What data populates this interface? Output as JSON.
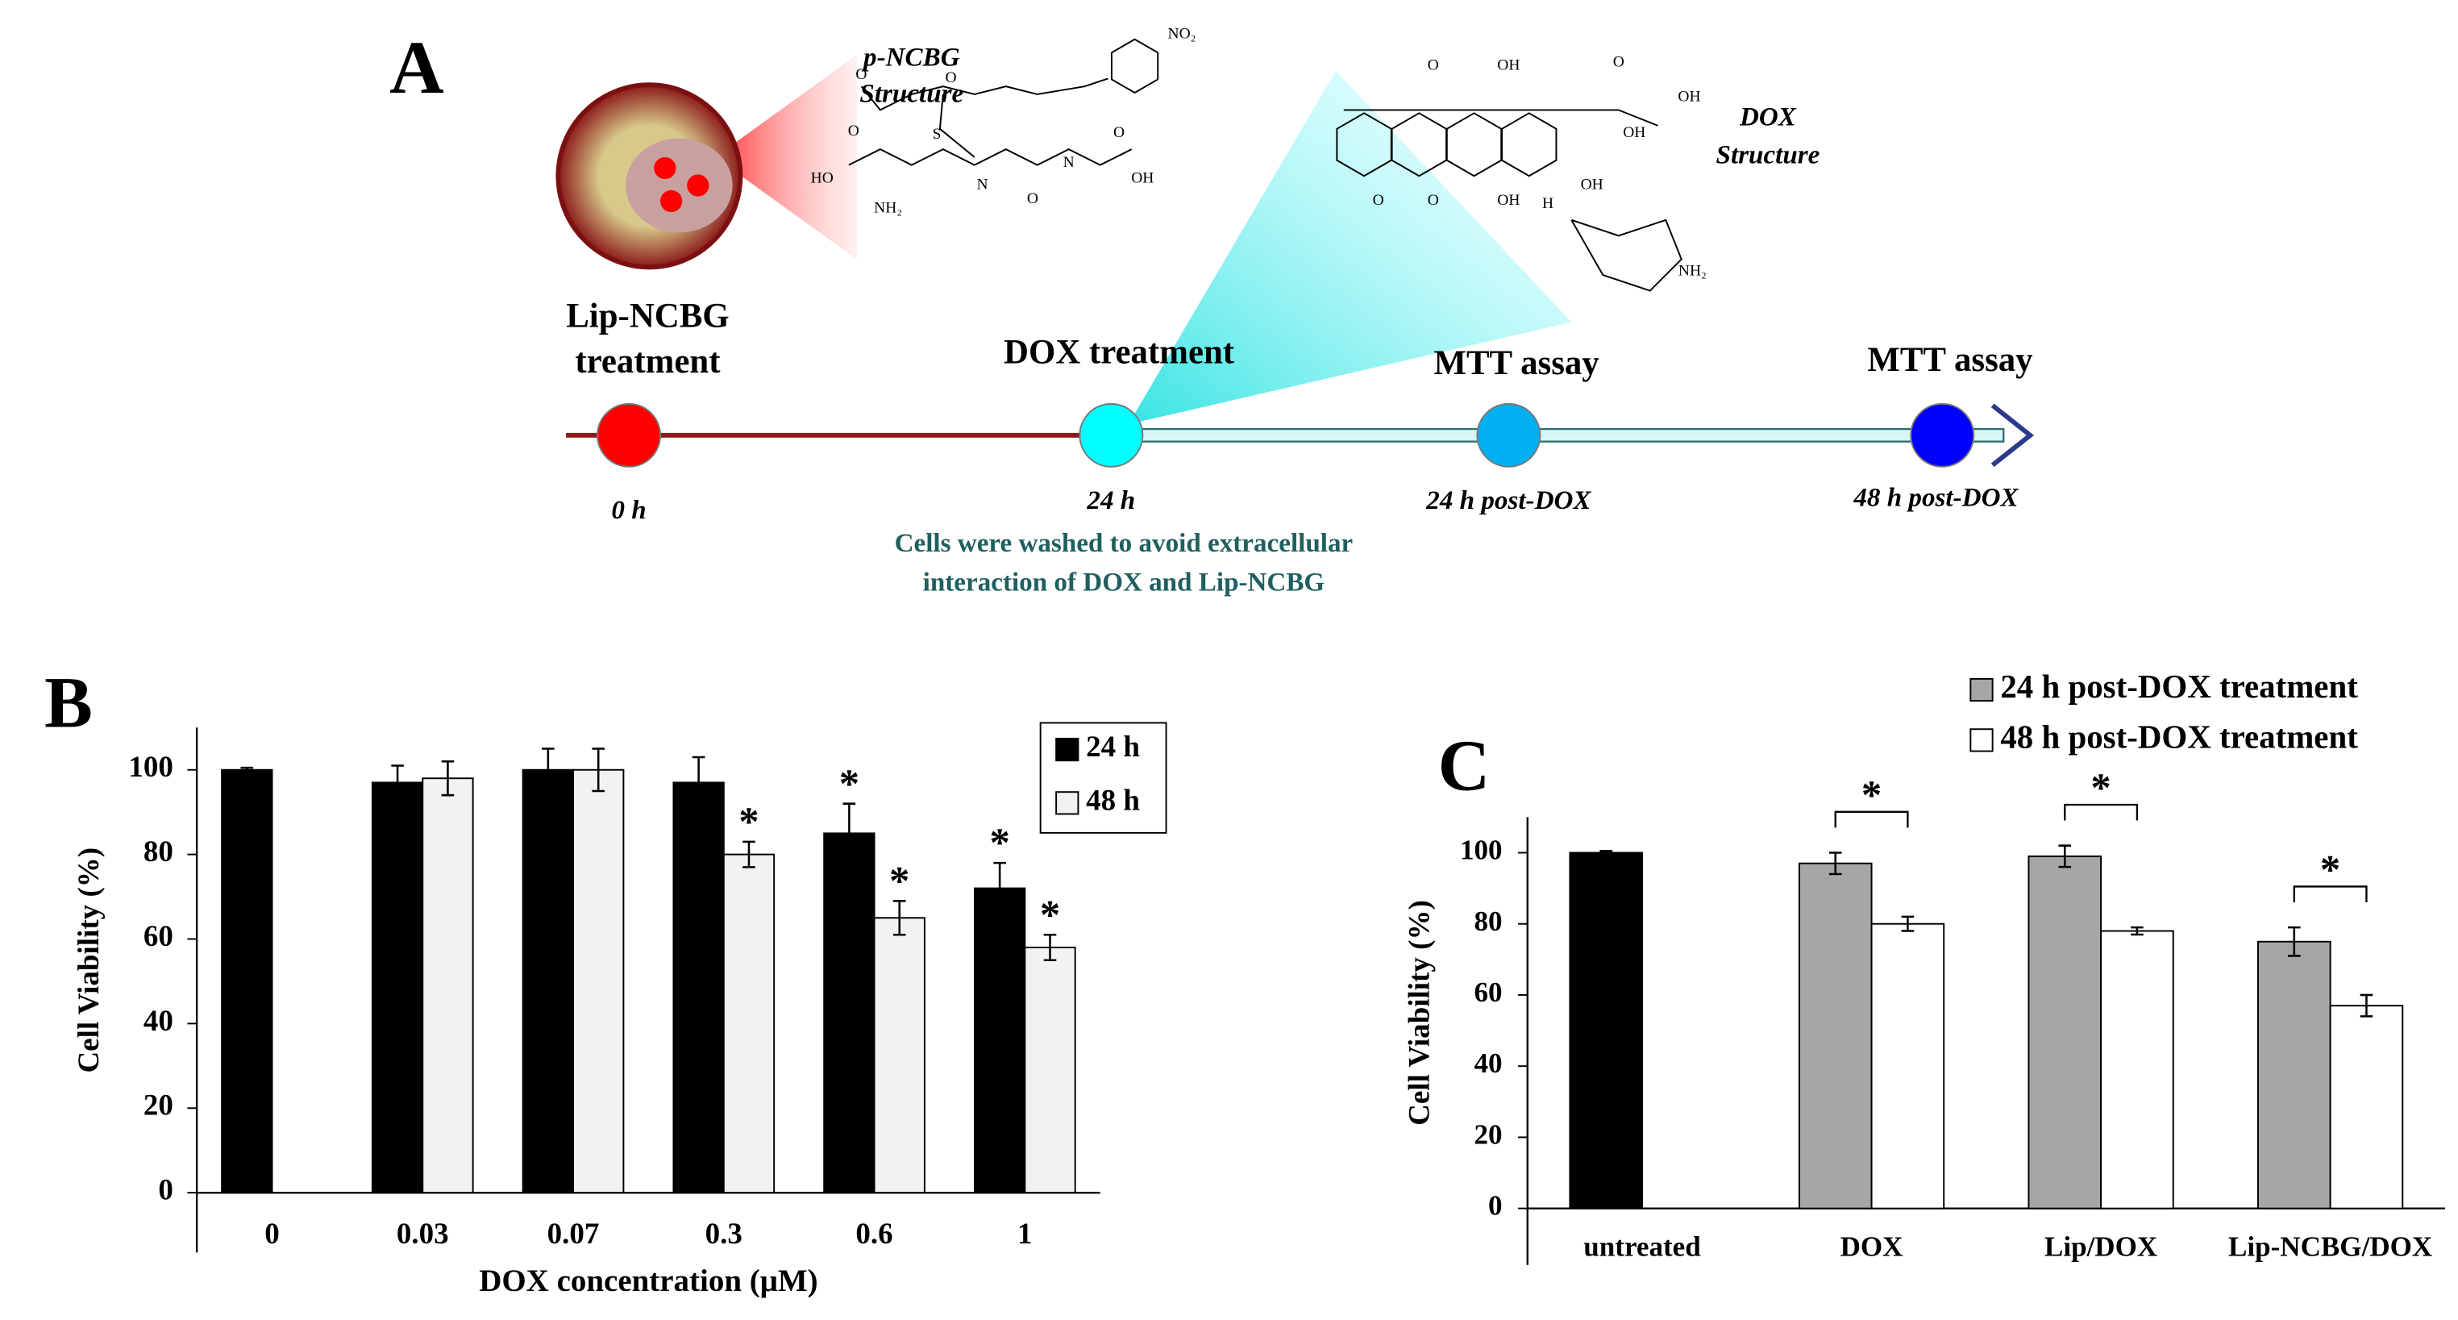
{
  "diagram": {
    "panel": "A",
    "nodes": [
      {
        "label": [
          "Lip-NCBG",
          "treatment"
        ],
        "time": "0 h",
        "color": "#ff0000"
      },
      {
        "label": [
          "DOX treatment"
        ],
        "time": "24 h",
        "color": "#00ffff"
      },
      {
        "label": [
          "MTT assay"
        ],
        "time": "24 h post-DOX",
        "color": "#00b0f0"
      },
      {
        "label": [
          "MTT assay"
        ],
        "time": "48 h post-DOX",
        "color": "#0000ff"
      }
    ],
    "note": [
      "Cells were washed to avoid extracellular",
      "interaction of DOX and Lip-NCBG"
    ],
    "structures": [
      {
        "caption": [
          "p-NCBG",
          "Structure"
        ],
        "atoms": [
          "NO₂",
          "O",
          "O",
          "S",
          "HO",
          "O",
          "NH₂",
          "N",
          "O",
          "N",
          "O",
          "OH"
        ]
      },
      {
        "caption": [
          "DOX",
          "Structure"
        ],
        "atoms": [
          "O",
          "OH",
          "O",
          "OH",
          "OH",
          "OH",
          "O",
          "O",
          "H",
          "OH",
          "NH₂"
        ]
      }
    ]
  },
  "chart_data": [
    {
      "type": "bar",
      "panel": "B",
      "categories": [
        "0",
        "0.03",
        "0.07",
        "0.3",
        "0.6",
        "1"
      ],
      "series": [
        {
          "name": "24 h",
          "color": "#000000",
          "values": [
            100,
            97,
            100,
            97,
            85,
            72
          ],
          "errors": [
            0.5,
            4,
            5,
            6,
            7,
            6
          ]
        },
        {
          "name": "48 h",
          "color": "#f2f2f2",
          "values": [
            null,
            98,
            100,
            80,
            65,
            58
          ],
          "errors": [
            null,
            4,
            5,
            3,
            4,
            3
          ]
        }
      ],
      "xlabel": "DOX concentration (μM)",
      "ylabel": "Cell Viability (%)",
      "ylim": [
        0,
        110
      ],
      "yticks": [
        0,
        20,
        40,
        60,
        80,
        100
      ],
      "legend": "upper right",
      "annotations": [
        {
          "text": "*",
          "series": 1,
          "index": 3
        },
        {
          "text": "*",
          "series": 0,
          "index": 4
        },
        {
          "text": "*",
          "series": 1,
          "index": 4
        },
        {
          "text": "*",
          "series": 0,
          "index": 5
        },
        {
          "text": "*",
          "series": 1,
          "index": 5
        }
      ]
    },
    {
      "type": "bar",
      "panel": "C",
      "categories": [
        "untreated",
        "DOX",
        "Lip/DOX",
        "Lip-NCBG/DOX"
      ],
      "series": [
        {
          "name": "24 h post-DOX treatment",
          "color": "#a6a6a6",
          "colors": [
            "#000000",
            "#a6a6a6",
            "#a6a6a6",
            "#a6a6a6"
          ],
          "values": [
            100,
            97,
            99,
            75
          ],
          "errors": [
            0.5,
            3,
            3,
            4
          ]
        },
        {
          "name": "48 h post-DOX treatment",
          "color": "#ffffff",
          "values": [
            null,
            80,
            78,
            57
          ],
          "errors": [
            null,
            2,
            1,
            3
          ]
        }
      ],
      "ylabel": "Cell Viability (%)",
      "ylim": [
        0,
        110
      ],
      "yticks": [
        0,
        20,
        40,
        60,
        80,
        100
      ],
      "legend": "upper right",
      "brackets": [
        {
          "text": "*",
          "index": 1
        },
        {
          "text": "*",
          "index": 2
        },
        {
          "text": "*",
          "index": 3
        }
      ]
    }
  ]
}
